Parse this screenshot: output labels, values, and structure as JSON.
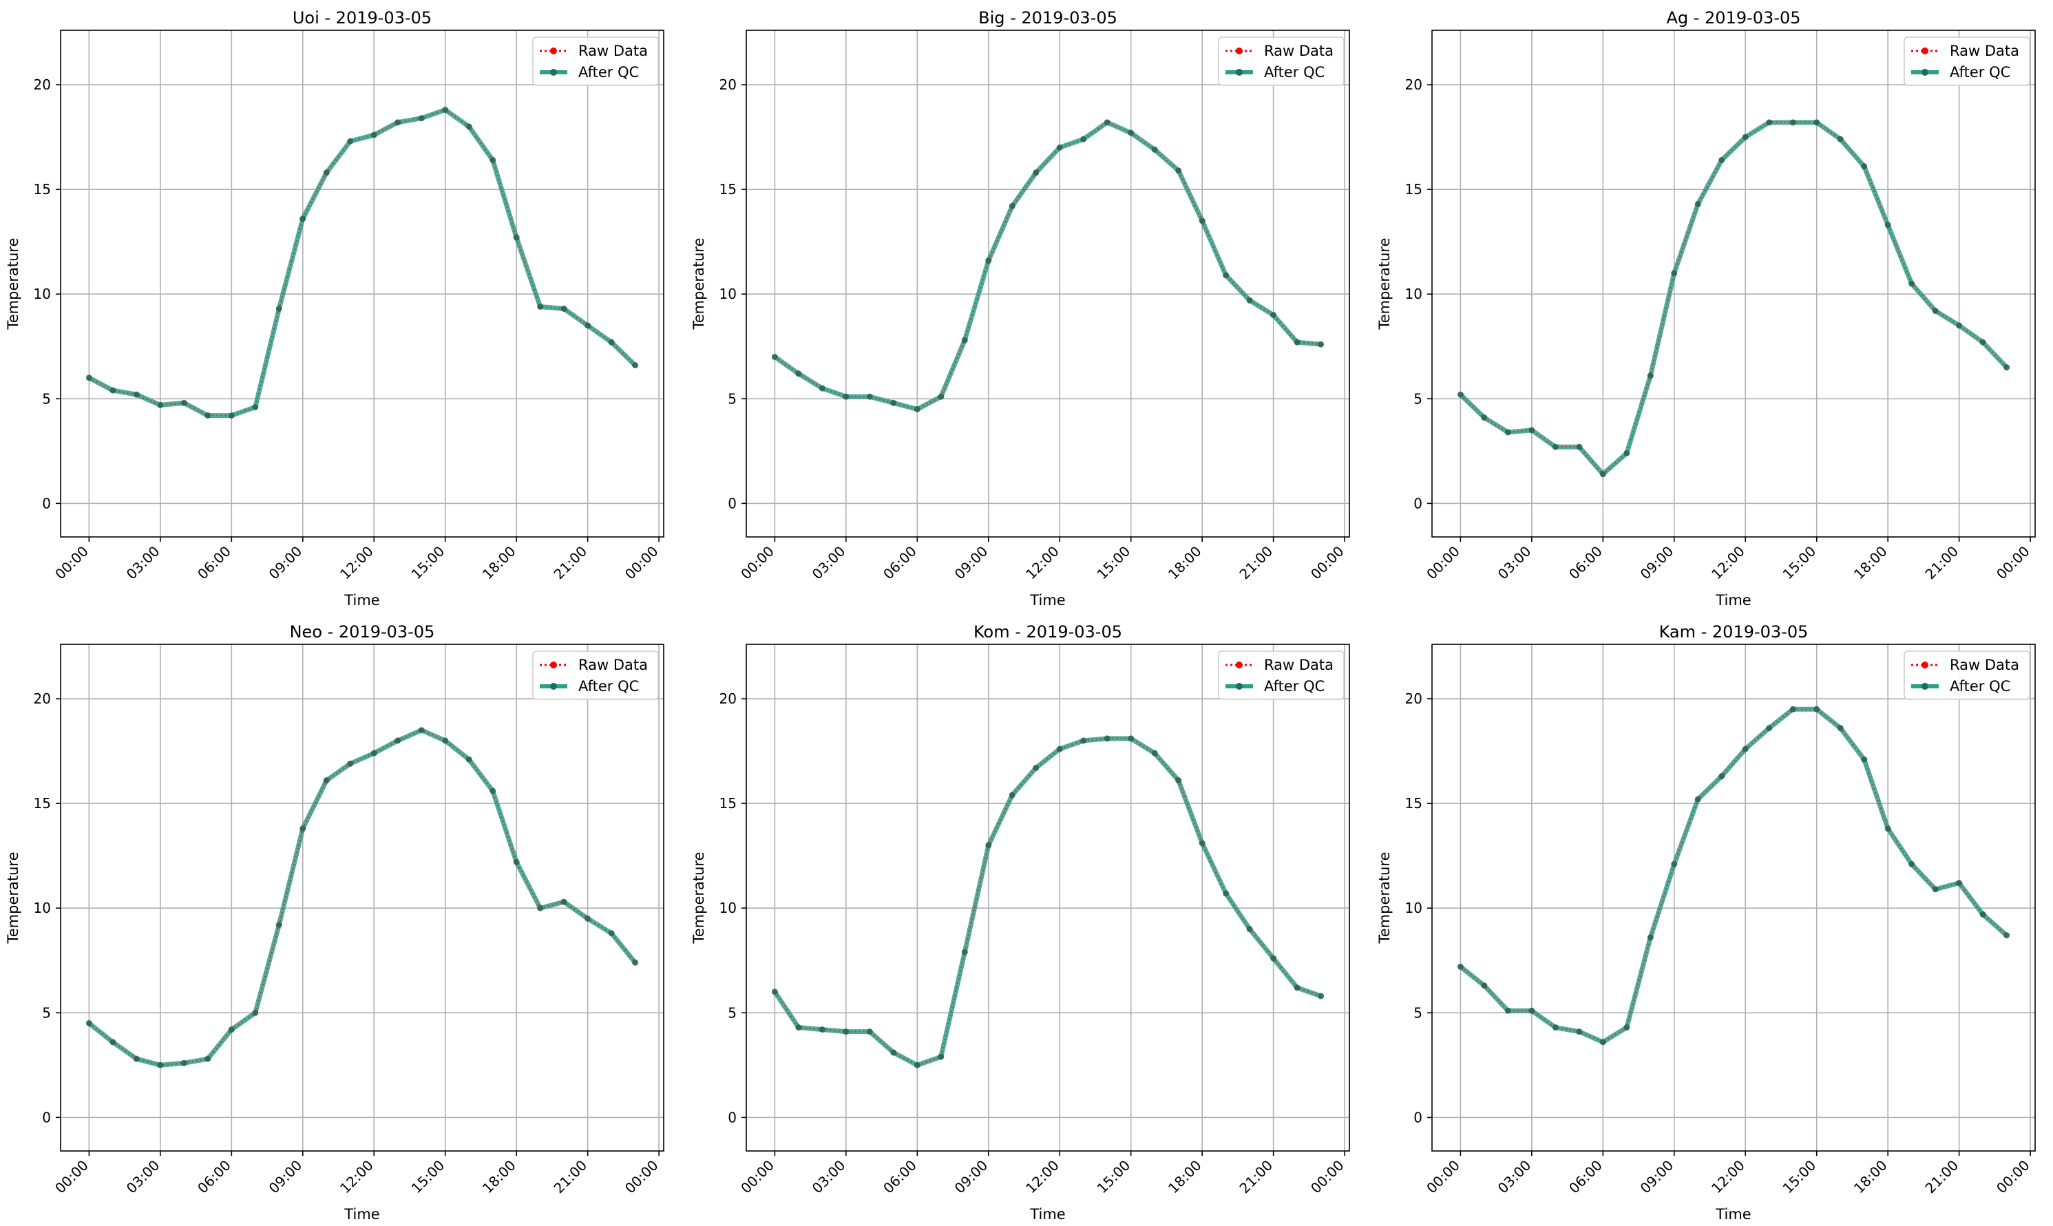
{
  "legend": {
    "raw_label": "Raw Data",
    "qc_label": "After QC"
  },
  "colors": {
    "raw": "#ff0000",
    "qc": "#2ca089",
    "qc_marker": "#1f6e5a",
    "grid": "#b0b0b0"
  },
  "chart_data": [
    {
      "type": "line",
      "title": "Uoi - 2019-03-05",
      "xlabel": "Time",
      "ylabel": "Temperature",
      "x_ticks": [
        "00:00",
        "03:00",
        "06:00",
        "09:00",
        "12:00",
        "15:00",
        "18:00",
        "21:00",
        "00:00"
      ],
      "y_ticks": [
        0,
        5,
        10,
        15,
        20
      ],
      "xlim_hours": [
        -1.2,
        24.2
      ],
      "ylim": [
        -1.6,
        22.6
      ],
      "grid": true,
      "legend_position": "top-right",
      "x_hours": [
        0,
        1,
        2,
        3,
        4,
        5,
        6,
        7,
        8,
        9,
        10,
        11,
        12,
        13,
        14,
        15,
        16,
        17,
        18,
        19,
        20,
        21,
        22,
        23
      ],
      "series": [
        {
          "name": "Raw Data",
          "values": [
            6.0,
            5.4,
            5.2,
            4.7,
            4.8,
            4.2,
            4.2,
            4.6,
            9.3,
            13.6,
            15.8,
            17.3,
            17.6,
            18.2,
            18.4,
            18.8,
            18.0,
            16.4,
            12.7,
            9.4,
            9.3,
            8.5,
            7.7,
            6.6
          ]
        },
        {
          "name": "After QC",
          "values": [
            6.0,
            5.4,
            5.2,
            4.7,
            4.8,
            4.2,
            4.2,
            4.6,
            9.3,
            13.6,
            15.8,
            17.3,
            17.6,
            18.2,
            18.4,
            18.8,
            18.0,
            16.4,
            12.7,
            9.4,
            9.3,
            8.5,
            7.7,
            6.6
          ]
        }
      ]
    },
    {
      "type": "line",
      "title": "Big - 2019-03-05",
      "xlabel": "Time",
      "ylabel": "Temperature",
      "x_ticks": [
        "00:00",
        "03:00",
        "06:00",
        "09:00",
        "12:00",
        "15:00",
        "18:00",
        "21:00",
        "00:00"
      ],
      "y_ticks": [
        0,
        5,
        10,
        15,
        20
      ],
      "xlim_hours": [
        -1.2,
        24.2
      ],
      "ylim": [
        -1.6,
        22.6
      ],
      "grid": true,
      "legend_position": "top-right",
      "x_hours": [
        0,
        1,
        2,
        3,
        4,
        5,
        6,
        7,
        8,
        9,
        10,
        11,
        12,
        13,
        14,
        15,
        16,
        17,
        18,
        19,
        20,
        21,
        22,
        23
      ],
      "series": [
        {
          "name": "Raw Data",
          "values": [
            7.0,
            6.2,
            5.5,
            5.1,
            5.1,
            4.8,
            4.5,
            5.1,
            7.8,
            11.6,
            14.2,
            15.8,
            17.0,
            17.4,
            18.2,
            17.7,
            16.9,
            15.9,
            13.5,
            10.9,
            9.7,
            9.0,
            7.7,
            7.6
          ]
        },
        {
          "name": "After QC",
          "values": [
            7.0,
            6.2,
            5.5,
            5.1,
            5.1,
            4.8,
            4.5,
            5.1,
            7.8,
            11.6,
            14.2,
            15.8,
            17.0,
            17.4,
            18.2,
            17.7,
            16.9,
            15.9,
            13.5,
            10.9,
            9.7,
            9.0,
            7.7,
            7.6
          ]
        }
      ]
    },
    {
      "type": "line",
      "title": "Ag - 2019-03-05",
      "xlabel": "Time",
      "ylabel": "Temperature",
      "x_ticks": [
        "00:00",
        "03:00",
        "06:00",
        "09:00",
        "12:00",
        "15:00",
        "18:00",
        "21:00",
        "00:00"
      ],
      "y_ticks": [
        0,
        5,
        10,
        15,
        20
      ],
      "xlim_hours": [
        -1.2,
        24.2
      ],
      "ylim": [
        -1.6,
        22.6
      ],
      "grid": true,
      "legend_position": "top-right",
      "x_hours": [
        0,
        1,
        2,
        3,
        4,
        5,
        6,
        7,
        8,
        9,
        10,
        11,
        12,
        13,
        14,
        15,
        16,
        17,
        18,
        19,
        20,
        21,
        22,
        23
      ],
      "series": [
        {
          "name": "Raw Data",
          "values": [
            5.2,
            4.1,
            3.4,
            3.5,
            2.7,
            2.7,
            1.4,
            2.4,
            6.1,
            11.0,
            14.3,
            16.4,
            17.5,
            18.2,
            18.2,
            18.2,
            17.4,
            16.1,
            13.3,
            10.5,
            9.2,
            8.5,
            7.7,
            6.5
          ]
        },
        {
          "name": "After QC",
          "values": [
            5.2,
            4.1,
            3.4,
            3.5,
            2.7,
            2.7,
            1.4,
            2.4,
            6.1,
            11.0,
            14.3,
            16.4,
            17.5,
            18.2,
            18.2,
            18.2,
            17.4,
            16.1,
            13.3,
            10.5,
            9.2,
            8.5,
            7.7,
            6.5
          ]
        }
      ]
    },
    {
      "type": "line",
      "title": "Neo - 2019-03-05",
      "xlabel": "Time",
      "ylabel": "Temperature",
      "x_ticks": [
        "00:00",
        "03:00",
        "06:00",
        "09:00",
        "12:00",
        "15:00",
        "18:00",
        "21:00",
        "00:00"
      ],
      "y_ticks": [
        0,
        5,
        10,
        15,
        20
      ],
      "xlim_hours": [
        -1.2,
        24.2
      ],
      "ylim": [
        -1.6,
        22.6
      ],
      "grid": true,
      "legend_position": "top-right",
      "x_hours": [
        0,
        1,
        2,
        3,
        4,
        5,
        6,
        7,
        8,
        9,
        10,
        11,
        12,
        13,
        14,
        15,
        16,
        17,
        18,
        19,
        20,
        21,
        22,
        23
      ],
      "series": [
        {
          "name": "Raw Data",
          "values": [
            4.5,
            3.6,
            2.8,
            2.5,
            2.6,
            2.8,
            4.2,
            5.0,
            9.2,
            13.8,
            16.1,
            16.9,
            17.4,
            18.0,
            18.5,
            18.0,
            17.1,
            15.6,
            12.2,
            10.0,
            10.3,
            9.5,
            8.8,
            7.4
          ]
        },
        {
          "name": "After QC",
          "values": [
            4.5,
            3.6,
            2.8,
            2.5,
            2.6,
            2.8,
            4.2,
            5.0,
            9.2,
            13.8,
            16.1,
            16.9,
            17.4,
            18.0,
            18.5,
            18.0,
            17.1,
            15.6,
            12.2,
            10.0,
            10.3,
            9.5,
            8.8,
            7.4
          ]
        }
      ]
    },
    {
      "type": "line",
      "title": "Kom - 2019-03-05",
      "xlabel": "Time",
      "ylabel": "Temperature",
      "x_ticks": [
        "00:00",
        "03:00",
        "06:00",
        "09:00",
        "12:00",
        "15:00",
        "18:00",
        "21:00",
        "00:00"
      ],
      "y_ticks": [
        0,
        5,
        10,
        15,
        20
      ],
      "xlim_hours": [
        -1.2,
        24.2
      ],
      "ylim": [
        -1.6,
        22.6
      ],
      "grid": true,
      "legend_position": "top-right",
      "x_hours": [
        0,
        1,
        2,
        3,
        4,
        5,
        6,
        7,
        8,
        9,
        10,
        11,
        12,
        13,
        14,
        15,
        16,
        17,
        18,
        19,
        20,
        21,
        22,
        23
      ],
      "series": [
        {
          "name": "Raw Data",
          "values": [
            6.0,
            4.3,
            4.2,
            4.1,
            4.1,
            3.1,
            2.5,
            2.9,
            7.9,
            13.0,
            15.4,
            16.7,
            17.6,
            18.0,
            18.1,
            18.1,
            17.4,
            16.1,
            13.1,
            10.7,
            9.0,
            7.6,
            6.2,
            5.8
          ]
        },
        {
          "name": "After QC",
          "values": [
            6.0,
            4.3,
            4.2,
            4.1,
            4.1,
            3.1,
            2.5,
            2.9,
            7.9,
            13.0,
            15.4,
            16.7,
            17.6,
            18.0,
            18.1,
            18.1,
            17.4,
            16.1,
            13.1,
            10.7,
            9.0,
            7.6,
            6.2,
            5.8
          ]
        }
      ]
    },
    {
      "type": "line",
      "title": "Kam - 2019-03-05",
      "xlabel": "Time",
      "ylabel": "Temperature",
      "x_ticks": [
        "00:00",
        "03:00",
        "06:00",
        "09:00",
        "12:00",
        "15:00",
        "18:00",
        "21:00",
        "00:00"
      ],
      "y_ticks": [
        0,
        5,
        10,
        15,
        20
      ],
      "xlim_hours": [
        -1.2,
        24.2
      ],
      "ylim": [
        -1.6,
        22.6
      ],
      "grid": true,
      "legend_position": "top-right",
      "x_hours": [
        0,
        1,
        2,
        3,
        4,
        5,
        6,
        7,
        8,
        9,
        10,
        11,
        12,
        13,
        14,
        15,
        16,
        17,
        18,
        19,
        20,
        21,
        22,
        23
      ],
      "series": [
        {
          "name": "Raw Data",
          "values": [
            7.2,
            6.3,
            5.1,
            5.1,
            4.3,
            4.1,
            3.6,
            4.3,
            8.6,
            12.1,
            15.2,
            16.3,
            17.6,
            18.6,
            19.5,
            19.5,
            18.6,
            17.1,
            13.8,
            12.1,
            10.9,
            11.2,
            9.7,
            8.7
          ]
        },
        {
          "name": "After QC",
          "values": [
            7.2,
            6.3,
            5.1,
            5.1,
            4.3,
            4.1,
            3.6,
            4.3,
            8.6,
            12.1,
            15.2,
            16.3,
            17.6,
            18.6,
            19.5,
            19.5,
            18.6,
            17.1,
            13.8,
            12.1,
            10.9,
            11.2,
            9.7,
            8.7
          ]
        }
      ]
    }
  ]
}
